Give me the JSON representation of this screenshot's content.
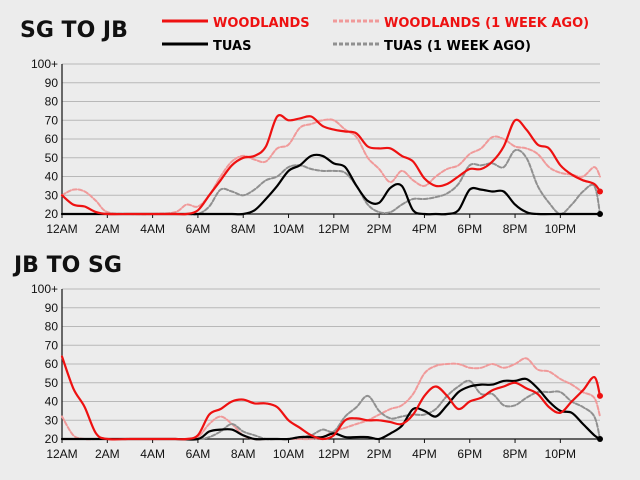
{
  "colors": {
    "woodlands": "#ee1111",
    "woodlands_prev": "#f09a9a",
    "tuas": "#000000",
    "tuas_prev": "#909090",
    "background": "#ececec",
    "grid": "#b8b8b8"
  },
  "legend": [
    {
      "label": "WOODLANDS",
      "series": "woodlands",
      "style": "solid",
      "text_color": "#ee1111"
    },
    {
      "label": "WOODLANDS (1 WEEK AGO)",
      "series": "woodlands_prev",
      "style": "dashed",
      "text_color": "#ee1111"
    },
    {
      "label": "TUAS",
      "series": "tuas",
      "style": "solid",
      "text_color": "#000000"
    },
    {
      "label": "TUAS (1 WEEK AGO)",
      "series": "tuas_prev",
      "style": "dashed",
      "text_color": "#000000"
    }
  ],
  "chart_data": [
    {
      "type": "line",
      "title": "SG TO JB",
      "xlabel": "",
      "ylabel": "",
      "x_tick_labels": [
        "12AM",
        "2AM",
        "4AM",
        "6AM",
        "8AM",
        "10AM",
        "12PM",
        "2PM",
        "4PM",
        "6PM",
        "8PM",
        "10PM"
      ],
      "y_tick_labels": [
        "20",
        "30",
        "40",
        "50",
        "60",
        "70",
        "80",
        "90",
        "100+"
      ],
      "ylim": [
        20,
        100
      ],
      "xlim_hours": [
        0,
        23.75
      ],
      "grid": true,
      "legend_position": "top",
      "series": [
        {
          "key": "woodlands",
          "name": "WOODLANDS",
          "x_hours": [
            0,
            0.5,
            1,
            1.5,
            2,
            3,
            4,
            5,
            5.5,
            6,
            6.5,
            7,
            7.5,
            8,
            8.5,
            9,
            9.5,
            10,
            10.5,
            11,
            11.5,
            12,
            12.5,
            13,
            13.5,
            14,
            14.5,
            15,
            15.5,
            16,
            16.5,
            17,
            17.5,
            18,
            18.5,
            19,
            19.5,
            20,
            20.5,
            21,
            21.5,
            22,
            22.5,
            23,
            23.5,
            23.75
          ],
          "values": [
            30,
            25,
            24,
            21,
            20,
            20,
            20,
            20,
            20,
            22,
            30,
            38,
            46,
            50,
            51,
            56,
            72,
            70,
            71,
            72,
            67,
            65,
            64,
            63,
            56,
            55,
            55,
            51,
            48,
            39,
            35,
            36,
            40,
            44,
            44,
            48,
            56,
            70,
            65,
            57,
            55,
            46,
            41,
            38,
            36,
            32
          ]
        },
        {
          "key": "woodlands_prev",
          "name": "WOODLANDS (1 WEEK AGO)",
          "x_hours": [
            0,
            0.5,
            1,
            1.5,
            2,
            3,
            4,
            5,
            5.5,
            6,
            6.5,
            7,
            7.5,
            8,
            8.5,
            9,
            9.5,
            10,
            10.5,
            11,
            11.5,
            12,
            12.5,
            13,
            13.5,
            14,
            14.5,
            15,
            15.5,
            16,
            16.5,
            17,
            17.5,
            18,
            18.5,
            19,
            19.5,
            20,
            20.5,
            21,
            21.5,
            22,
            22.5,
            23,
            23.5,
            23.75
          ],
          "values": [
            30,
            33,
            32,
            27,
            21,
            20,
            20,
            21,
            25,
            24,
            30,
            40,
            48,
            51,
            49,
            48,
            55,
            57,
            66,
            68,
            70,
            70,
            65,
            61,
            50,
            44,
            37,
            43,
            38,
            35,
            40,
            44,
            46,
            52,
            55,
            61,
            60,
            56,
            55,
            52,
            45,
            42,
            41,
            40,
            45,
            40
          ]
        },
        {
          "key": "tuas",
          "name": "TUAS",
          "x_hours": [
            0,
            1,
            2,
            3,
            4,
            5,
            6,
            7,
            7.5,
            8,
            8.5,
            9,
            9.5,
            10,
            10.5,
            11,
            11.5,
            12,
            12.5,
            13,
            13.5,
            14,
            14.5,
            15,
            15.5,
            16,
            16.5,
            17,
            17.5,
            18,
            18.5,
            19,
            19.5,
            20,
            20.5,
            21,
            22,
            23,
            23.75
          ],
          "values": [
            20,
            20,
            20,
            20,
            20,
            20,
            20,
            20,
            20,
            20,
            22,
            28,
            35,
            43,
            46,
            51,
            51,
            47,
            45,
            35,
            27,
            26,
            34,
            35,
            22,
            20,
            20,
            20,
            22,
            33,
            33,
            32,
            32,
            25,
            21,
            20,
            20,
            20,
            20
          ]
        },
        {
          "key": "tuas_prev",
          "name": "TUAS (1 WEEK AGO)",
          "x_hours": [
            0,
            1,
            2,
            3,
            4,
            5,
            5.5,
            6,
            6.5,
            7,
            7.5,
            8,
            8.5,
            9,
            9.5,
            10,
            10.5,
            11,
            11.5,
            12,
            12.5,
            13,
            13.5,
            14,
            14.5,
            15,
            15.5,
            16,
            16.5,
            17,
            17.5,
            18,
            18.5,
            19,
            19.5,
            20,
            20.5,
            21,
            21.5,
            22,
            22.5,
            23,
            23.5,
            23.75
          ],
          "values": [
            20,
            20,
            20,
            20,
            20,
            20,
            20,
            20,
            24,
            33,
            32,
            30,
            33,
            38,
            40,
            45,
            46,
            44,
            43,
            43,
            42,
            35,
            25,
            21,
            21,
            25,
            28,
            28,
            29,
            31,
            36,
            46,
            46,
            47,
            45,
            54,
            50,
            35,
            26,
            20,
            25,
            32,
            35,
            20
          ]
        }
      ],
      "end_markers": [
        {
          "series": "woodlands",
          "value": 32
        },
        {
          "series": "tuas",
          "value": 20
        }
      ]
    },
    {
      "type": "line",
      "title": "JB TO SG",
      "xlabel": "",
      "ylabel": "",
      "x_tick_labels": [
        "12AM",
        "2AM",
        "4AM",
        "6AM",
        "8AM",
        "10AM",
        "12PM",
        "2PM",
        "4PM",
        "6PM",
        "8PM",
        "10PM"
      ],
      "y_tick_labels": [
        "20",
        "30",
        "40",
        "50",
        "60",
        "70",
        "80",
        "90",
        "100+"
      ],
      "ylim": [
        20,
        100
      ],
      "xlim_hours": [
        0,
        23.75
      ],
      "grid": true,
      "legend_position": "top",
      "series": [
        {
          "key": "woodlands",
          "name": "WOODLANDS",
          "x_hours": [
            0,
            0.5,
            1,
            1.5,
            2,
            3,
            4,
            5,
            5.5,
            6,
            6.5,
            7,
            7.5,
            8,
            8.5,
            9,
            9.5,
            10,
            10.5,
            11,
            11.5,
            12,
            12.5,
            13,
            13.5,
            14,
            14.5,
            15,
            15.5,
            16,
            16.5,
            17,
            17.5,
            18,
            18.5,
            19,
            19.5,
            20,
            20.5,
            21,
            21.5,
            22,
            22.5,
            23,
            23.5,
            23.75
          ],
          "values": [
            64,
            47,
            37,
            23,
            20,
            20,
            20,
            20,
            20,
            22,
            33,
            36,
            40,
            41,
            39,
            39,
            37,
            30,
            26,
            22,
            20,
            22,
            30,
            31,
            30,
            30,
            29,
            28,
            33,
            43,
            48,
            43,
            36,
            40,
            42,
            46,
            48,
            50,
            47,
            44,
            37,
            34,
            40,
            46,
            53,
            43
          ]
        },
        {
          "key": "woodlands_prev",
          "name": "WOODLANDS (1 WEEK AGO)",
          "x_hours": [
            0,
            0.5,
            1,
            1.5,
            2,
            3,
            4,
            5,
            5.5,
            6,
            6.5,
            7,
            7.5,
            8,
            8.5,
            9,
            9.5,
            10,
            10.5,
            11,
            11.5,
            12,
            12.5,
            13,
            13.5,
            14,
            14.5,
            15,
            15.5,
            16,
            16.5,
            17,
            17.5,
            18,
            18.5,
            19,
            19.5,
            20,
            20.5,
            21,
            21.5,
            22,
            22.5,
            23,
            23.5,
            23.75
          ],
          "values": [
            32,
            22,
            20,
            20,
            20,
            20,
            20,
            20,
            20,
            21,
            28,
            32,
            28,
            22,
            20,
            20,
            20,
            20,
            20,
            20,
            21,
            24,
            26,
            28,
            30,
            33,
            36,
            38,
            44,
            55,
            59,
            60,
            60,
            58,
            58,
            60,
            58,
            60,
            63,
            57,
            56,
            52,
            49,
            45,
            42,
            32
          ]
        },
        {
          "key": "tuas",
          "name": "TUAS",
          "x_hours": [
            0,
            1,
            2,
            3,
            4,
            5,
            6,
            6.5,
            7,
            7.5,
            8,
            8.5,
            9,
            9.5,
            10,
            10.5,
            11,
            11.5,
            12,
            12.5,
            13,
            13.5,
            14,
            14.5,
            15,
            15.5,
            16,
            16.5,
            17,
            17.5,
            18,
            18.5,
            19,
            19.5,
            20,
            20.5,
            21,
            21.5,
            22,
            22.5,
            23,
            23.5,
            23.75
          ],
          "values": [
            20,
            20,
            20,
            20,
            20,
            20,
            20,
            24,
            25,
            25,
            22,
            20,
            20,
            20,
            20,
            21,
            21,
            21,
            23,
            21,
            21,
            21,
            20,
            23,
            27,
            36,
            35,
            32,
            38,
            45,
            48,
            49,
            49,
            51,
            51,
            52,
            47,
            40,
            35,
            34,
            28,
            22,
            20
          ]
        },
        {
          "key": "tuas_prev",
          "name": "TUAS (1 WEEK AGO)",
          "x_hours": [
            0,
            1,
            2,
            3,
            4,
            5,
            6,
            6.5,
            7,
            7.5,
            8,
            8.5,
            9,
            9.5,
            10,
            10.5,
            11,
            11.5,
            12,
            12.5,
            13,
            13.5,
            14,
            14.5,
            15,
            15.5,
            16,
            16.5,
            17,
            17.5,
            18,
            18.5,
            19,
            19.5,
            20,
            20.5,
            21,
            21.5,
            22,
            22.5,
            23,
            23.5,
            23.75
          ],
          "values": [
            20,
            20,
            20,
            20,
            20,
            20,
            20,
            21,
            24,
            28,
            24,
            22,
            20,
            20,
            20,
            21,
            22,
            25,
            24,
            32,
            37,
            43,
            35,
            31,
            32,
            33,
            33,
            36,
            43,
            48,
            51,
            44,
            44,
            38,
            38,
            42,
            45,
            45,
            45,
            40,
            37,
            32,
            20
          ]
        }
      ],
      "end_markers": [
        {
          "series": "woodlands",
          "value": 43
        },
        {
          "series": "tuas",
          "value": 20
        }
      ]
    }
  ]
}
